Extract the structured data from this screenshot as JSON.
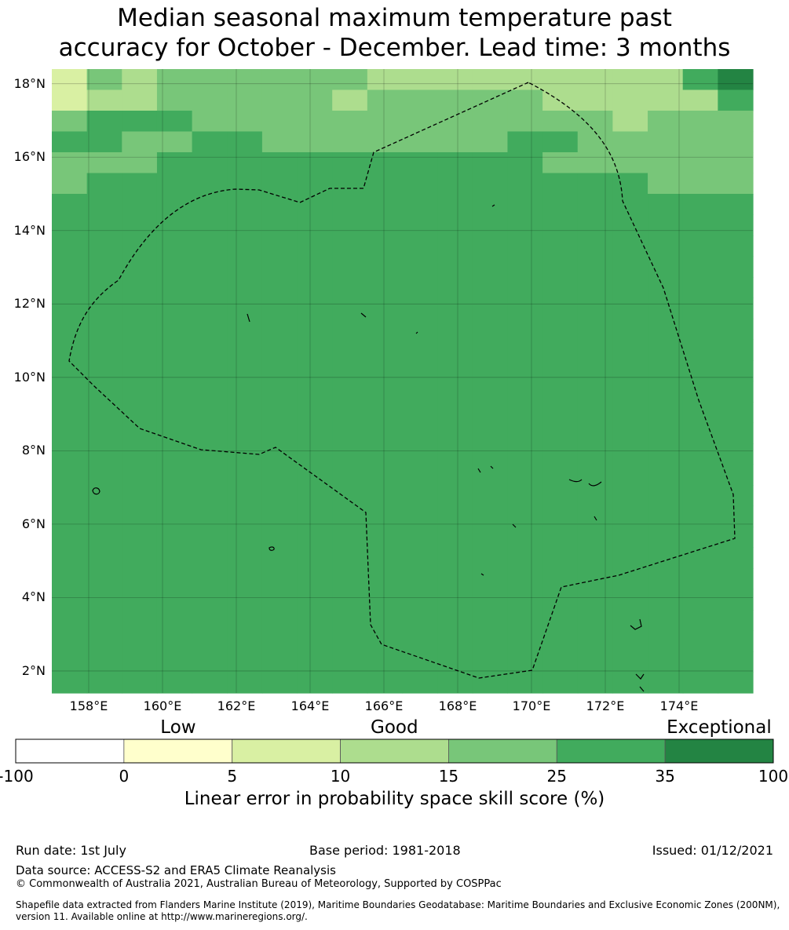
{
  "title": "Median seasonal maximum temperature past\naccuracy for October - December. Lead time: 3 months",
  "map": {
    "lon_range": [
      157.0,
      176.0
    ],
    "lat_range": [
      1.4,
      18.4
    ],
    "cell_size_deg": 0.83,
    "lat_ticks": [
      "2°N",
      "4°N",
      "6°N",
      "8°N",
      "10°N",
      "12°N",
      "14°N",
      "16°N",
      "18°N"
    ],
    "lon_ticks": [
      "158°E",
      "160°E",
      "162°E",
      "164°E",
      "166°E",
      "168°E",
      "170°E",
      "172°E",
      "174°E"
    ],
    "grid_rows": [
      "24344444433333333356",
      "23344444344444333335",
      "45554444444444443444",
      "55445544444445544444",
      "44455555555555444444",
      "45555555555555555444",
      "55555555555555555555",
      "55555555555555555555",
      "55555555555555555555",
      "55555555555555555555",
      "55555555555555555555",
      "55555555555555555555",
      "55555555555555555555",
      "55555555555555555555",
      "55555555555555555555",
      "55555555555555555555",
      "55555555555555555555",
      "55555555555555555555",
      "55555555555555555555",
      "55555555555555555555",
      "55555555555555555555",
      "55555555555555555555",
      "55555555555555555555",
      "55555555555555555555",
      "55555555555555555555",
      "55555555555555555555",
      "55555555555555555555",
      "55555555555555555555",
      "55555555555555555555",
      "55555555555555555555"
    ]
  },
  "colorbar": {
    "categories": [
      {
        "word": "Low",
        "under_index": 1
      },
      {
        "word": "Good",
        "under_index": 3
      },
      {
        "word": "Exceptional",
        "under_index": 6
      }
    ],
    "boundaries": [
      "-100",
      "0",
      "5",
      "10",
      "15",
      "25",
      "35",
      "100"
    ],
    "colors": [
      "#ffffff",
      "#ffffcc",
      "#d9f0a3",
      "#addd8e",
      "#78c679",
      "#41ab5d",
      "#238443"
    ],
    "label": "Linear error in probability space skill score (%)"
  },
  "footer": {
    "run_date": "Run date: 1st July",
    "base_period": "Base period: 1981-2018",
    "issued": "Issued: 01/12/2021",
    "data_source": "Data source: ACCESS-S2 and ERA5 Climate Reanalysis",
    "copyright": "© Commonwealth of Australia 2021, Australian Bureau of Meteorology, Supported by COSPPac",
    "shapefile_note": "Shapefile data extracted from Flanders Marine Institute (2019), Maritime Boundaries Geodatabase: Maritime Boundaries and Exclusive Economic Zones (200NM), version 11. Available online at http://www.marineregions.org/."
  }
}
